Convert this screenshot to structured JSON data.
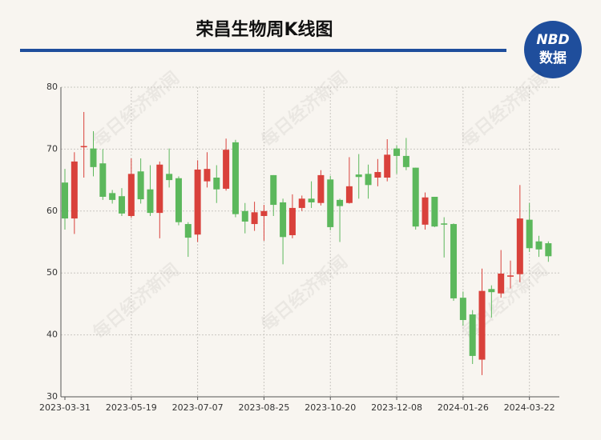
{
  "header": {
    "title": "荣昌生物周K线图",
    "logo_top": "NBD",
    "logo_bottom": "数据"
  },
  "watermark": "每日经济新闻",
  "chart_data": {
    "type": "candlestick",
    "categories": [
      "2023-03-31",
      null,
      null,
      null,
      null,
      null,
      null,
      "2023-05-19",
      null,
      null,
      null,
      null,
      null,
      null,
      "2023-07-07",
      null,
      null,
      null,
      null,
      null,
      null,
      "2023-08-25",
      null,
      null,
      null,
      null,
      null,
      null,
      "2023-10-20",
      null,
      null,
      null,
      null,
      null,
      null,
      "2023-12-08",
      null,
      null,
      null,
      null,
      null,
      null,
      "2024-01-26",
      null,
      null,
      null,
      null,
      null,
      null,
      "2024-03-22",
      null,
      null
    ],
    "open": [
      64.6,
      58.8,
      70.3,
      70.1,
      67.7,
      62.9,
      62.4,
      59.2,
      66.4,
      63.5,
      59.7,
      66.0,
      65.3,
      57.9,
      56.2,
      64.8,
      65.4,
      63.6,
      71.1,
      60.0,
      57.9,
      59.2,
      65.8,
      61.4,
      56.1,
      60.5,
      62.0,
      61.3,
      65.1,
      61.8,
      61.3,
      65.9,
      66.0,
      65.4,
      65.4,
      70.1,
      68.9,
      67.0,
      57.8,
      62.3,
      58.0,
      57.9,
      46.0,
      43.3,
      36.0,
      47.4,
      46.7,
      49.4,
      49.8,
      58.6,
      55.1,
      54.8
    ],
    "high": [
      66.8,
      69.5,
      76.0,
      72.9,
      70.0,
      63.4,
      63.7,
      68.5,
      68.5,
      67.4,
      68.0,
      70.1,
      65.6,
      58.2,
      68.2,
      69.5,
      67.4,
      71.7,
      71.5,
      61.3,
      61.5,
      61.0,
      65.8,
      62.0,
      62.7,
      62.5,
      64.8,
      66.6,
      65.7,
      62.0,
      68.7,
      69.2,
      67.5,
      68.4,
      71.6,
      70.6,
      71.8,
      67.0,
      63.0,
      62.3,
      59.0,
      58.0,
      47.0,
      44.0,
      50.7,
      48.0,
      53.7,
      52.0,
      64.2,
      61.3,
      56.0,
      55.1
    ],
    "low": [
      57.0,
      56.3,
      65.4,
      65.6,
      61.8,
      61.2,
      59.2,
      58.9,
      61.2,
      59.2,
      55.6,
      63.8,
      57.7,
      52.6,
      55.0,
      63.8,
      61.3,
      63.3,
      59.0,
      56.4,
      56.8,
      55.2,
      59.2,
      51.4,
      55.6,
      60.0,
      60.5,
      60.9,
      56.9,
      55.0,
      61.2,
      62.0,
      62.0,
      64.0,
      64.8,
      66.0,
      66.6,
      57.0,
      57.0,
      57.4,
      52.5,
      45.5,
      41.5,
      35.3,
      33.5,
      42.8,
      46.0,
      47.5,
      48.5,
      53.4,
      52.6,
      51.8
    ],
    "close": [
      58.8,
      68.0,
      70.5,
      67.1,
      62.3,
      61.8,
      59.6,
      66.0,
      61.9,
      59.7,
      67.5,
      65.0,
      58.2,
      55.7,
      66.7,
      66.8,
      63.5,
      69.9,
      59.5,
      58.3,
      59.8,
      60.0,
      61.0,
      55.8,
      60.5,
      62.0,
      61.4,
      65.8,
      57.4,
      60.8,
      64.0,
      65.5,
      64.2,
      66.3,
      69.1,
      68.9,
      67.1,
      57.5,
      62.2,
      57.5,
      57.8,
      45.9,
      42.4,
      36.6,
      47.1,
      46.9,
      49.9,
      49.6,
      58.8,
      54.0,
      53.8,
      52.7
    ],
    "up_color": "#d9413b",
    "down_color": "#5cb85c",
    "ylim": [
      30,
      80
    ],
    "yticks": [
      30,
      40,
      50,
      60,
      70,
      80
    ],
    "grid": true
  }
}
